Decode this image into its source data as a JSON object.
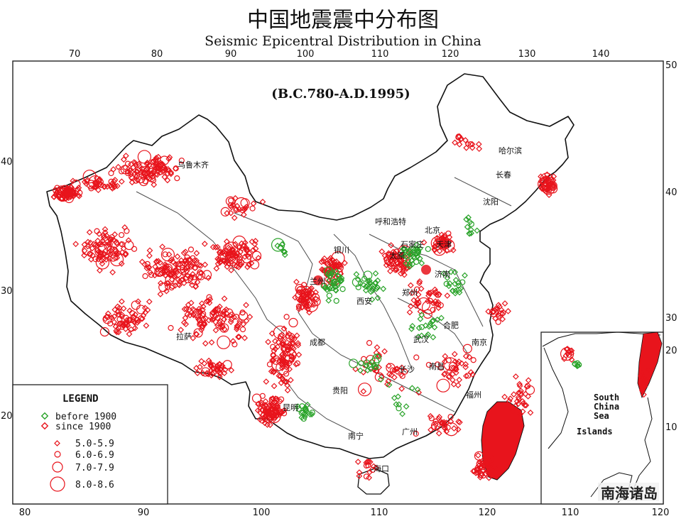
{
  "title_zh": "中国地震震中分布图",
  "title_en": "Seismic Epicentral Distribution in China",
  "date_range": "(B.C.780-A.D.1995)",
  "top_ticks": [
    "70",
    "80",
    "90",
    "100",
    "110",
    "120",
    "130",
    "140"
  ],
  "right_ticks": [
    "50",
    "40",
    "30",
    "20",
    "10"
  ],
  "left_ticks": [
    "40",
    "30",
    "20"
  ],
  "bottom_ticks": [
    "80",
    "90",
    "100",
    "110",
    "120"
  ],
  "inset_right_ticks": [
    "20",
    "10"
  ],
  "inset_bottom_ticks": [
    "110",
    "120"
  ],
  "cities": {
    "harbin": "哈尔滨",
    "changchun": "长春",
    "shenyang": "沈阳",
    "hohhot": "呼和浩特",
    "urumqi": "乌鲁木齐",
    "yinchuan": "银川",
    "taiyuan": "太原",
    "jinan": "济南",
    "zhengzhou": "郑州",
    "xian": "西安",
    "lanzhou": "兰州",
    "lhasa": "拉萨",
    "chengdu": "成都",
    "wuhan": "武汉",
    "hefei": "合肥",
    "nanjing": "南京",
    "changsha": "长沙",
    "nanchang": "南昌",
    "guiyang": "贵阳",
    "kunming": "昆明",
    "fuzhou": "福州",
    "guangzhou": "广州",
    "nanning": "南宁",
    "haikou": "海口",
    "beijing": "北京",
    "tianjin": "天津",
    "shijiazhuang": "石家庄"
  },
  "legend": {
    "title": "LEGEND",
    "before": "before 1900",
    "since": "since  1900",
    "m1": "5.0-5.9",
    "m2": "6.0-6.9",
    "m3": "7.0-7.9",
    "m4": "8.0-8.6"
  },
  "inset": {
    "sea1": "South",
    "sea2": "China",
    "sea3": "Sea",
    "islands": "Islands"
  },
  "watermark": "南海诸岛",
  "colors": {
    "since_1900": "#e8141c",
    "before_1900": "#2aa32a",
    "border": "#111111"
  }
}
